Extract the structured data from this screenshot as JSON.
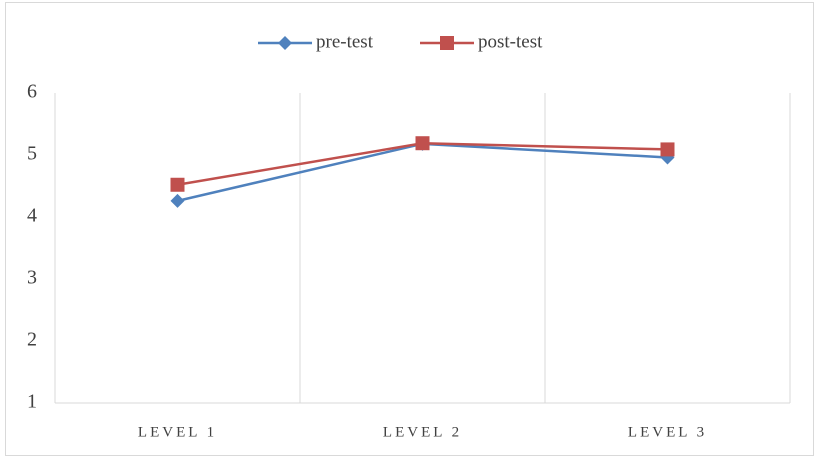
{
  "chart_data": {
    "type": "line",
    "categories": [
      "LEVEL 1",
      "LEVEL 2",
      "LEVEL 3"
    ],
    "series": [
      {
        "name": "pre-test",
        "color": "#4f81bd",
        "marker": "diamond",
        "values": [
          4.26,
          5.18,
          4.96
        ]
      },
      {
        "name": "post-test",
        "color": "#c0504d",
        "marker": "square",
        "values": [
          4.52,
          5.19,
          5.09
        ]
      }
    ],
    "ylim": [
      1,
      6
    ],
    "yticks": [
      1,
      2,
      3,
      4,
      5,
      6
    ],
    "legend": "top"
  }
}
